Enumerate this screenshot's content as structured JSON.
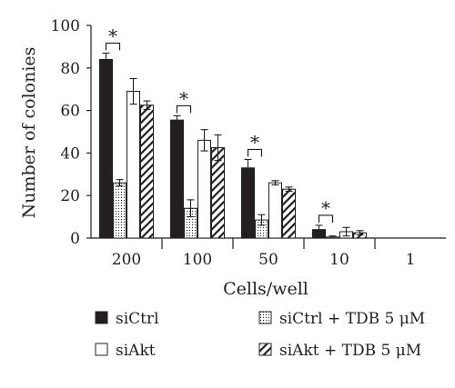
{
  "chart_data": {
    "type": "bar",
    "xlabel": "Cells/well",
    "ylabel": "Number of colonies",
    "ylim": [
      0,
      100
    ],
    "yticks": [
      "0",
      "20",
      "40",
      "60",
      "80",
      "100"
    ],
    "categories": [
      "200",
      "100",
      "50",
      "10",
      "1"
    ],
    "series": [
      {
        "name": "siCtrl",
        "pattern": "solid",
        "values": [
          84,
          55.5,
          33,
          4,
          0
        ],
        "errors": [
          3,
          2,
          4,
          2,
          0
        ]
      },
      {
        "name": "siCtrl + TDB 5 μM",
        "pattern": "dots",
        "values": [
          26,
          14,
          8.5,
          0.5,
          0
        ],
        "errors": [
          1.5,
          4,
          2.5,
          0.5,
          0
        ]
      },
      {
        "name": "siAkt",
        "pattern": "open",
        "values": [
          69,
          46,
          26,
          3,
          0
        ],
        "errors": [
          6,
          5,
          1,
          2,
          0
        ]
      },
      {
        "name": "siAkt + TDB 5 μM",
        "pattern": "hatch",
        "values": [
          62.5,
          42.5,
          23,
          2.5,
          0
        ],
        "errors": [
          2,
          6,
          1,
          1,
          0
        ]
      }
    ],
    "significance": [
      {
        "category": "200",
        "label": "*"
      },
      {
        "category": "100",
        "label": "*"
      },
      {
        "category": "50",
        "label": "*"
      },
      {
        "category": "10",
        "label": "*"
      }
    ],
    "legend": {
      "placement": "bottom",
      "entries": [
        "siCtrl",
        "siCtrl + TDB 5 μM",
        "siAkt",
        "siAkt + TDB 5 μM"
      ]
    },
    "colors": {
      "ink": "#231f20",
      "background": "#ffffff"
    }
  }
}
